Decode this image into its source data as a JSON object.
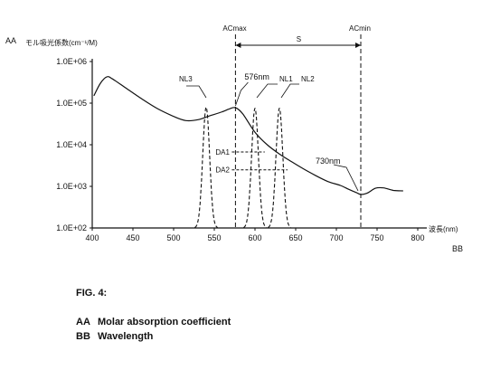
{
  "figure": {
    "corner_label": "AA",
    "ylabel_jp": "モル吸光係数(cm⁻¹/M)",
    "xlabel_jp": "波長(nm)",
    "xlabel_code": "BB",
    "markers": {
      "acmax": "ACmax",
      "acmin": "ACmin",
      "span": "S",
      "nl1": "NL1",
      "nl2": "NL2",
      "nl3": "NL3",
      "peak_label": "576nm",
      "min_label": "730nm",
      "da1": "DA1",
      "da2": "DA2"
    }
  },
  "chart_data": {
    "type": "line",
    "xlim": [
      400,
      800
    ],
    "x_ticks": [
      400,
      450,
      500,
      550,
      600,
      650,
      700,
      750,
      800
    ],
    "y_log": true,
    "ylim": [
      100,
      1000000
    ],
    "y_ticks": [
      "1.0E+02",
      "1.0E+03",
      "1.0E+04",
      "1.0E+05",
      "1.0E+06"
    ],
    "y_tick_values": [
      100,
      1000,
      10000,
      100000,
      1000000
    ],
    "series": [
      {
        "style": "solid",
        "points": [
          [
            402,
            150000
          ],
          [
            410,
            300000
          ],
          [
            418,
            430000
          ],
          [
            425,
            380000
          ],
          [
            440,
            240000
          ],
          [
            460,
            130000
          ],
          [
            480,
            74000
          ],
          [
            500,
            48000
          ],
          [
            515,
            38000
          ],
          [
            530,
            40000
          ],
          [
            545,
            50000
          ],
          [
            560,
            62000
          ],
          [
            568,
            72000
          ],
          [
            576,
            78000
          ],
          [
            585,
            55000
          ],
          [
            600,
            20000
          ],
          [
            615,
            10000
          ],
          [
            630,
            6000
          ],
          [
            645,
            3900
          ],
          [
            660,
            2600
          ],
          [
            675,
            1800
          ],
          [
            690,
            1300
          ],
          [
            705,
            1050
          ],
          [
            715,
            850
          ],
          [
            725,
            700
          ],
          [
            730,
            640
          ],
          [
            738,
            690
          ],
          [
            748,
            900
          ],
          [
            758,
            920
          ],
          [
            770,
            800
          ],
          [
            782,
            780
          ]
        ]
      },
      {
        "name": "NL3",
        "style": "dashed",
        "center": 540,
        "peak": 80000
      },
      {
        "name": "NL1",
        "style": "dashed",
        "center": 600,
        "peak": 75000
      },
      {
        "name": "NL2",
        "style": "dashed",
        "center": 630,
        "peak": 75000
      }
    ],
    "acmax_x": 576,
    "acmin_x": 730,
    "da1_y": 6700,
    "da2_y": 2500
  },
  "caption": {
    "fig": "FIG. 4:",
    "legend": [
      {
        "code": "AA",
        "text": "Molar absorption coefficient"
      },
      {
        "code": "BB",
        "text": "Wavelength"
      }
    ]
  }
}
